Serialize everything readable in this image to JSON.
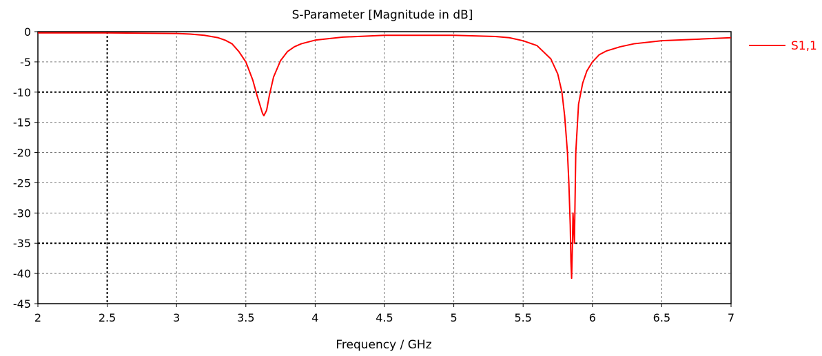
{
  "chart_data": {
    "type": "line",
    "title": "S-Parameter [Magnitude in dB]",
    "xlabel": "Frequency / GHz",
    "ylabel": "",
    "xlim": [
      2,
      7
    ],
    "ylim": [
      -45,
      0
    ],
    "x_ticks": [
      2,
      2.5,
      3,
      3.5,
      4,
      4.5,
      5,
      5.5,
      6,
      6.5,
      7
    ],
    "x_tick_labels": [
      "2",
      "2.5",
      "3",
      "3.5",
      "4",
      "4.5",
      "5",
      "5.5",
      "6",
      "6.5",
      "7"
    ],
    "y_ticks": [
      0,
      -5,
      -10,
      -15,
      -20,
      -25,
      -30,
      -35,
      -40,
      -45
    ],
    "y_tick_labels": [
      "0",
      "-5",
      "-10",
      "-15",
      "-20",
      "-25",
      "-30",
      "-35",
      "-40",
      "-45"
    ],
    "grid": true,
    "legend_position": "right",
    "series": [
      {
        "name": "S1,1",
        "color": "#ff0000",
        "x": [
          2.0,
          2.5,
          3.0,
          3.1,
          3.2,
          3.3,
          3.35,
          3.4,
          3.45,
          3.5,
          3.55,
          3.58,
          3.6,
          3.62,
          3.63,
          3.65,
          3.67,
          3.7,
          3.75,
          3.8,
          3.85,
          3.9,
          4.0,
          4.2,
          4.5,
          5.0,
          5.3,
          5.4,
          5.5,
          5.6,
          5.7,
          5.75,
          5.78,
          5.8,
          5.82,
          5.83,
          5.84,
          5.845,
          5.85,
          5.855,
          5.86,
          5.87,
          5.88,
          5.9,
          5.93,
          5.96,
          6.0,
          6.05,
          6.1,
          6.2,
          6.3,
          6.5,
          6.8,
          7.0
        ],
        "y": [
          -0.2,
          -0.2,
          -0.3,
          -0.4,
          -0.6,
          -1.0,
          -1.4,
          -2.0,
          -3.3,
          -5.0,
          -8.0,
          -10.5,
          -12.0,
          -13.5,
          -13.9,
          -13.0,
          -10.5,
          -7.5,
          -4.8,
          -3.3,
          -2.5,
          -2.0,
          -1.4,
          -0.9,
          -0.6,
          -0.6,
          -0.8,
          -1.0,
          -1.5,
          -2.3,
          -4.5,
          -7.0,
          -10.0,
          -14.0,
          -20.0,
          -25.0,
          -32.0,
          -38.0,
          -40.8,
          -36.0,
          -30.0,
          -35.0,
          -20.0,
          -12.0,
          -8.5,
          -6.5,
          -5.0,
          -3.8,
          -3.2,
          -2.5,
          -2.0,
          -1.5,
          -1.2,
          -1.0
        ]
      }
    ]
  }
}
